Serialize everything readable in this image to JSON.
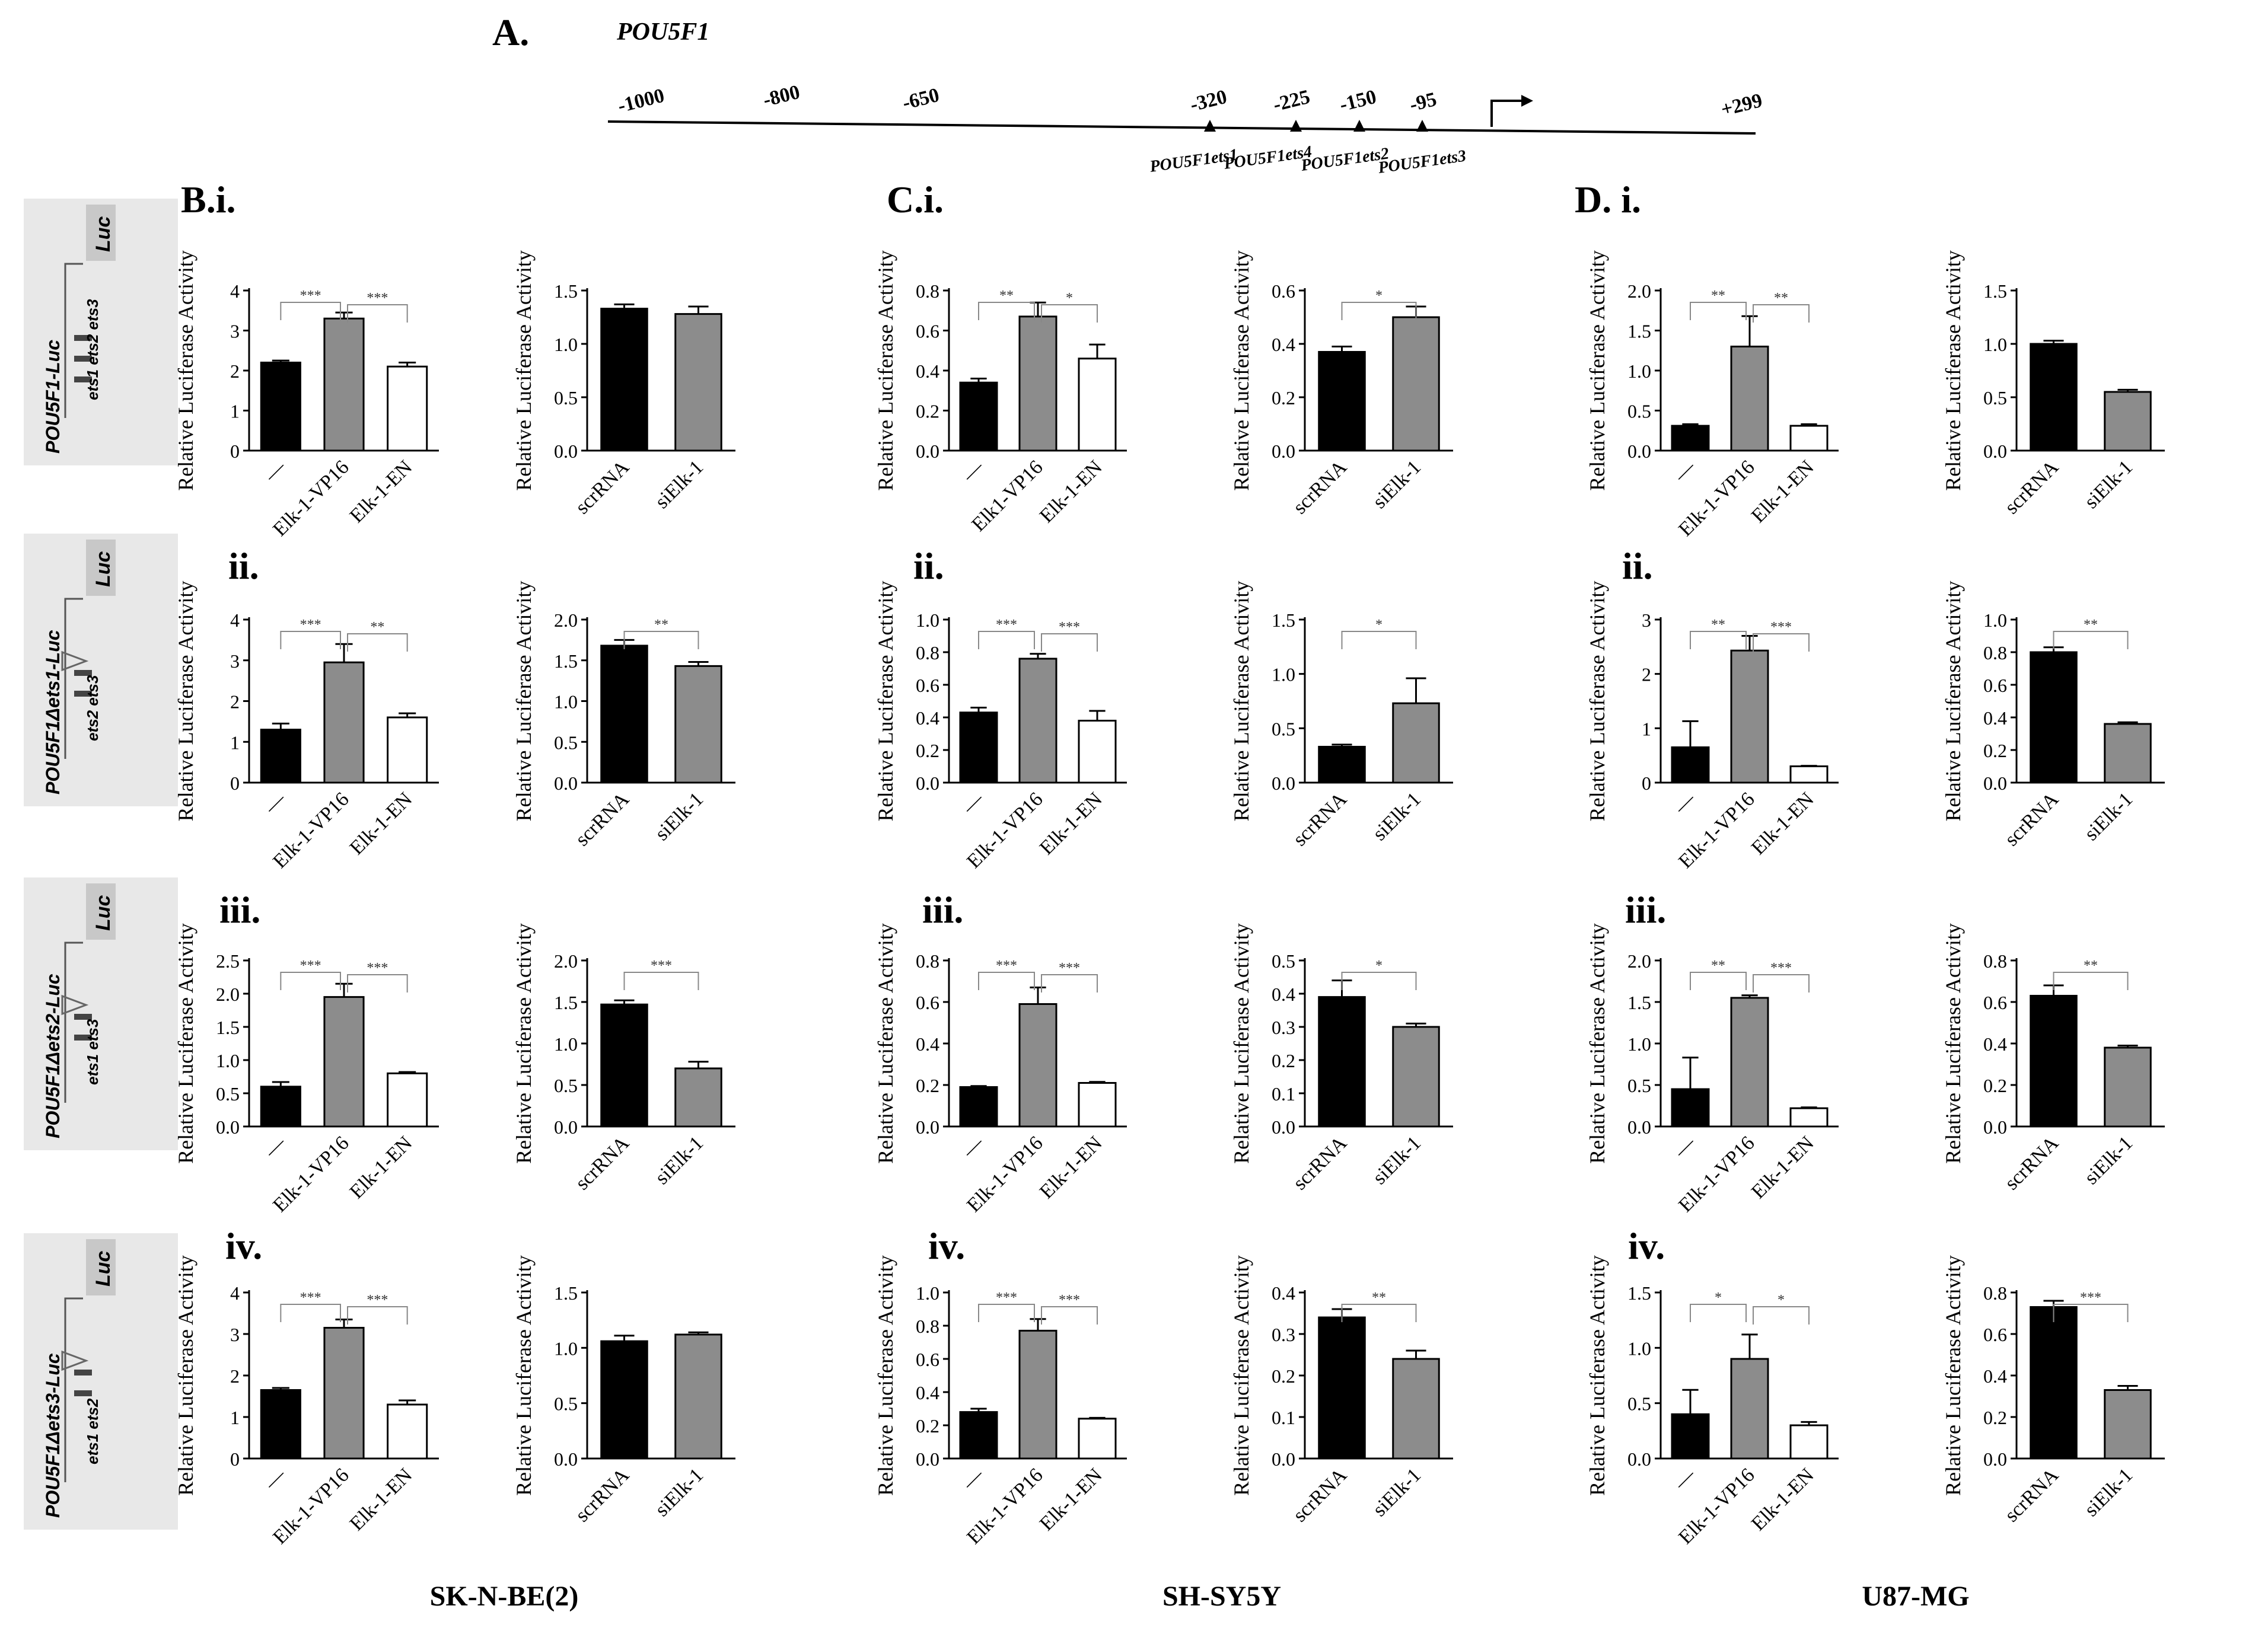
{
  "figure": {
    "panel_label_A": "A.",
    "gene_name": "POU5F1",
    "promoter_positions": [
      "-1000",
      "-800",
      "-650",
      "-320",
      "-225",
      "-150",
      "-95",
      "+299"
    ],
    "ets_sites": [
      "POU5F1ets1",
      "POU5F1ets4",
      "POU5F1ets2",
      "POU5F1ets3"
    ],
    "column_labels": [
      "B.i.",
      "C.i.",
      "D. i."
    ],
    "row_labels": [
      "ii.",
      "iii.",
      "iv."
    ],
    "cell_lines": [
      "SK-N-BE(2)",
      "SH-SY5Y",
      "U87-MG"
    ],
    "constructs": [
      {
        "name": "POU5F1-Luc",
        "sites": [
          "ets1",
          "ets2",
          "ets3"
        ]
      },
      {
        "name": "POU5F1Δets1-Luc",
        "sites": [
          "ets2",
          "ets3"
        ]
      },
      {
        "name": "POU5F1Δets2-Luc",
        "sites": [
          "ets1",
          "ets3"
        ]
      },
      {
        "name": "POU5F1Δets3-Luc",
        "sites": [
          "ets1",
          "ets2"
        ]
      }
    ],
    "luc_label": "Luc",
    "colors": {
      "black": "#000000",
      "gray": "#8c8c8c",
      "white": "#ffffff",
      "panel_bg": "#e8e8e8"
    }
  },
  "chart_data": [
    {
      "type": "bar",
      "row": "i",
      "cell_line": "SK-N-BE(2)",
      "ylabel": "Relative Luciferase Activity",
      "categories": [
        "—",
        "Elk-1-VP16",
        "Elk-1-EN"
      ],
      "values": [
        2.2,
        3.3,
        2.1
      ],
      "errors": [
        0.05,
        0.15,
        0.1
      ],
      "ylim": [
        0,
        4
      ],
      "yticks": [
        "0",
        "1",
        "2",
        "3",
        "4"
      ],
      "significance": [
        {
          "from": 0,
          "to": 1,
          "label": "***"
        },
        {
          "from": 1,
          "to": 2,
          "label": "***"
        }
      ]
    },
    {
      "type": "bar",
      "row": "i",
      "cell_line": "SK-N-BE(2)",
      "ylabel": "Relative Luciferase Activity",
      "categories": [
        "scrRNA",
        "siElk-1"
      ],
      "values": [
        1.33,
        1.28
      ],
      "errors": [
        0.04,
        0.07
      ],
      "ylim": [
        0,
        1.5
      ],
      "yticks": [
        "0.0",
        "0.5",
        "1.0",
        "1.5"
      ],
      "significance": []
    },
    {
      "type": "bar",
      "row": "i",
      "cell_line": "SH-SY5Y",
      "ylabel": "Relative Luciferase Activity",
      "categories": [
        "—",
        "Elk1-VP16",
        "Elk-1-EN"
      ],
      "values": [
        0.34,
        0.67,
        0.46
      ],
      "errors": [
        0.02,
        0.07,
        0.07
      ],
      "ylim": [
        0,
        0.8
      ],
      "yticks": [
        "0.0",
        "0.2",
        "0.4",
        "0.6",
        "0.8"
      ],
      "significance": [
        {
          "from": 0,
          "to": 1,
          "label": "**"
        },
        {
          "from": 1,
          "to": 2,
          "label": "*"
        }
      ]
    },
    {
      "type": "bar",
      "row": "i",
      "cell_line": "SH-SY5Y",
      "ylabel": "Relative Luciferase Activity",
      "categories": [
        "scrRNA",
        "siElk-1"
      ],
      "values": [
        0.37,
        0.5
      ],
      "errors": [
        0.02,
        0.04
      ],
      "ylim": [
        0,
        0.6
      ],
      "yticks": [
        "0.0",
        "0.2",
        "0.4",
        "0.6"
      ],
      "significance": [
        {
          "from": 0,
          "to": 1,
          "label": "*"
        }
      ]
    },
    {
      "type": "bar",
      "row": "i",
      "cell_line": "U87-MG",
      "ylabel": "Relative Luciferase Activity",
      "categories": [
        "—",
        "Elk-1-VP16",
        "Elk-1-EN"
      ],
      "values": [
        0.31,
        1.3,
        0.31
      ],
      "errors": [
        0.02,
        0.38,
        0.02
      ],
      "ylim": [
        0,
        2
      ],
      "yticks": [
        "0.0",
        "0.5",
        "1.0",
        "1.5",
        "2.0"
      ],
      "significance": [
        {
          "from": 0,
          "to": 1,
          "label": "**"
        },
        {
          "from": 1,
          "to": 2,
          "label": "**"
        }
      ]
    },
    {
      "type": "bar",
      "row": "i",
      "cell_line": "U87-MG",
      "ylabel": "Relative Luciferase Activity",
      "categories": [
        "scrRNA",
        "siElk-1"
      ],
      "values": [
        1.0,
        0.55
      ],
      "errors": [
        0.03,
        0.02
      ],
      "ylim": [
        0,
        1.5
      ],
      "yticks": [
        "0.0",
        "0.5",
        "1.0",
        "1.5"
      ],
      "significance": []
    },
    {
      "type": "bar",
      "row": "ii",
      "cell_line": "SK-N-BE(2)",
      "ylabel": "Relative Luciferase Activity",
      "categories": [
        "—",
        "Elk-1-VP16",
        "Elk-1-EN"
      ],
      "values": [
        1.3,
        2.95,
        1.6
      ],
      "errors": [
        0.15,
        0.45,
        0.1
      ],
      "ylim": [
        0,
        4
      ],
      "yticks": [
        "0",
        "1",
        "2",
        "3",
        "4"
      ],
      "significance": [
        {
          "from": 0,
          "to": 1,
          "label": "***"
        },
        {
          "from": 1,
          "to": 2,
          "label": "**"
        }
      ]
    },
    {
      "type": "bar",
      "row": "ii",
      "cell_line": "SK-N-BE(2)",
      "ylabel": "Relative Luciferase Activity",
      "categories": [
        "scrRNA",
        "siElk-1"
      ],
      "values": [
        1.68,
        1.43
      ],
      "errors": [
        0.07,
        0.05
      ],
      "ylim": [
        0,
        2
      ],
      "yticks": [
        "0.0",
        "0.5",
        "1.0",
        "1.5",
        "2.0"
      ],
      "significance": [
        {
          "from": 0,
          "to": 1,
          "label": "**"
        }
      ]
    },
    {
      "type": "bar",
      "row": "ii",
      "cell_line": "SH-SY5Y",
      "ylabel": "Relative Luciferase Activity",
      "categories": [
        "—",
        "Elk-1-VP16",
        "Elk-1-EN"
      ],
      "values": [
        0.43,
        0.76,
        0.38
      ],
      "errors": [
        0.03,
        0.03,
        0.06
      ],
      "ylim": [
        0,
        1
      ],
      "yticks": [
        "0.0",
        "0.2",
        "0.4",
        "0.6",
        "0.8",
        "1.0"
      ],
      "significance": [
        {
          "from": 0,
          "to": 1,
          "label": "***"
        },
        {
          "from": 1,
          "to": 2,
          "label": "***"
        }
      ]
    },
    {
      "type": "bar",
      "row": "ii",
      "cell_line": "SH-SY5Y",
      "ylabel": "Relative Luciferase Activity",
      "categories": [
        "scrRNA",
        "siElk-1"
      ],
      "values": [
        0.33,
        0.73
      ],
      "errors": [
        0.02,
        0.23
      ],
      "ylim": [
        0,
        1.5
      ],
      "yticks": [
        "0.0",
        "0.5",
        "1.0",
        "1.5"
      ],
      "significance": [
        {
          "from": 0,
          "to": 1,
          "label": "*"
        }
      ]
    },
    {
      "type": "bar",
      "row": "ii",
      "cell_line": "U87-MG",
      "ylabel": "Relative Luciferase Activity",
      "categories": [
        "—",
        "Elk-1-VP16",
        "Elk-1-EN"
      ],
      "values": [
        0.65,
        2.43,
        0.3
      ],
      "errors": [
        0.48,
        0.27,
        0.01
      ],
      "ylim": [
        0,
        3
      ],
      "yticks": [
        "0",
        "1",
        "2",
        "3"
      ],
      "significance": [
        {
          "from": 0,
          "to": 1,
          "label": "**"
        },
        {
          "from": 1,
          "to": 2,
          "label": "***"
        }
      ]
    },
    {
      "type": "bar",
      "row": "ii",
      "cell_line": "U87-MG",
      "ylabel": "Relative Luciferase Activity",
      "categories": [
        "scrRNA",
        "siElk-1"
      ],
      "values": [
        0.8,
        0.36
      ],
      "errors": [
        0.03,
        0.01
      ],
      "ylim": [
        0,
        1
      ],
      "yticks": [
        "0.0",
        "0.2",
        "0.4",
        "0.6",
        "0.8",
        "1.0"
      ],
      "significance": [
        {
          "from": 0,
          "to": 1,
          "label": "**"
        }
      ]
    },
    {
      "type": "bar",
      "row": "iii",
      "cell_line": "SK-N-BE(2)",
      "ylabel": "Relative Luciferase Activity",
      "categories": [
        "—",
        "Elk-1-VP16",
        "Elk-1-EN"
      ],
      "values": [
        0.6,
        1.95,
        0.8
      ],
      "errors": [
        0.07,
        0.2,
        0.02
      ],
      "ylim": [
        0,
        2.5
      ],
      "yticks": [
        "0.0",
        "0.5",
        "1.0",
        "1.5",
        "2.0",
        "2.5"
      ],
      "significance": [
        {
          "from": 0,
          "to": 1,
          "label": "***"
        },
        {
          "from": 1,
          "to": 2,
          "label": "***"
        }
      ]
    },
    {
      "type": "bar",
      "row": "iii",
      "cell_line": "SK-N-BE(2)",
      "ylabel": "Relative Luciferase Activity",
      "categories": [
        "scrRNA",
        "siElk-1"
      ],
      "values": [
        1.47,
        0.7
      ],
      "errors": [
        0.05,
        0.08
      ],
      "ylim": [
        0,
        2
      ],
      "yticks": [
        "0.0",
        "0.5",
        "1.0",
        "1.5",
        "2.0"
      ],
      "significance": [
        {
          "from": 0,
          "to": 1,
          "label": "***"
        }
      ]
    },
    {
      "type": "bar",
      "row": "iii",
      "cell_line": "SH-SY5Y",
      "ylabel": "Relative Luciferase Activity",
      "categories": [
        "—",
        "Elk-1-VP16",
        "Elk-1-EN"
      ],
      "values": [
        0.19,
        0.59,
        0.21
      ],
      "errors": [
        0.005,
        0.08,
        0.005
      ],
      "ylim": [
        0,
        0.8
      ],
      "yticks": [
        "0.0",
        "0.2",
        "0.4",
        "0.6",
        "0.8"
      ],
      "significance": [
        {
          "from": 0,
          "to": 1,
          "label": "***"
        },
        {
          "from": 1,
          "to": 2,
          "label": "***"
        }
      ]
    },
    {
      "type": "bar",
      "row": "iii",
      "cell_line": "SH-SY5Y",
      "ylabel": "Relative Luciferase Activity",
      "categories": [
        "scrRNA",
        "siElk-1"
      ],
      "values": [
        0.39,
        0.3
      ],
      "errors": [
        0.05,
        0.01
      ],
      "ylim": [
        0,
        0.5
      ],
      "yticks": [
        "0.0",
        "0.1",
        "0.2",
        "0.3",
        "0.4",
        "0.5"
      ],
      "significance": [
        {
          "from": 0,
          "to": 1,
          "label": "*"
        }
      ]
    },
    {
      "type": "bar",
      "row": "iii",
      "cell_line": "U87-MG",
      "ylabel": "Relative Luciferase Activity",
      "categories": [
        "—",
        "Elk-1-VP16",
        "Elk-1-EN"
      ],
      "values": [
        0.45,
        1.55,
        0.22
      ],
      "errors": [
        0.38,
        0.03,
        0.01
      ],
      "ylim": [
        0,
        2
      ],
      "yticks": [
        "0.0",
        "0.5",
        "1.0",
        "1.5",
        "2.0"
      ],
      "significance": [
        {
          "from": 0,
          "to": 1,
          "label": "**"
        },
        {
          "from": 1,
          "to": 2,
          "label": "***"
        }
      ]
    },
    {
      "type": "bar",
      "row": "iii",
      "cell_line": "U87-MG",
      "ylabel": "Relative Luciferase Activity",
      "categories": [
        "scrRNA",
        "siElk-1"
      ],
      "values": [
        0.63,
        0.38
      ],
      "errors": [
        0.05,
        0.01
      ],
      "ylim": [
        0,
        0.8
      ],
      "yticks": [
        "0.0",
        "0.2",
        "0.4",
        "0.6",
        "0.8"
      ],
      "significance": [
        {
          "from": 0,
          "to": 1,
          "label": "**"
        }
      ]
    },
    {
      "type": "bar",
      "row": "iv",
      "cell_line": "SK-N-BE(2)",
      "ylabel": "Relative Luciferase Activity",
      "categories": [
        "—",
        "Elk-1-VP16",
        "Elk-1-EN"
      ],
      "values": [
        1.65,
        3.15,
        1.3
      ],
      "errors": [
        0.05,
        0.2,
        0.1
      ],
      "ylim": [
        0,
        4
      ],
      "yticks": [
        "0",
        "1",
        "2",
        "3",
        "4"
      ],
      "significance": [
        {
          "from": 0,
          "to": 1,
          "label": "***"
        },
        {
          "from": 1,
          "to": 2,
          "label": "***"
        }
      ]
    },
    {
      "type": "bar",
      "row": "iv",
      "cell_line": "SK-N-BE(2)",
      "ylabel": "Relative Luciferase Activity",
      "categories": [
        "scrRNA",
        "siElk-1"
      ],
      "values": [
        1.06,
        1.12
      ],
      "errors": [
        0.05,
        0.02
      ],
      "ylim": [
        0,
        1.5
      ],
      "yticks": [
        "0.0",
        "0.5",
        "1.0",
        "1.5"
      ],
      "significance": []
    },
    {
      "type": "bar",
      "row": "iv",
      "cell_line": "SH-SY5Y",
      "ylabel": "Relative Luciferase Activity",
      "categories": [
        "—",
        "Elk-1-VP16",
        "Elk-1-EN"
      ],
      "values": [
        0.28,
        0.77,
        0.24
      ],
      "errors": [
        0.02,
        0.07,
        0.005
      ],
      "ylim": [
        0,
        1
      ],
      "yticks": [
        "0.0",
        "0.2",
        "0.4",
        "0.6",
        "0.8",
        "1.0"
      ],
      "significance": [
        {
          "from": 0,
          "to": 1,
          "label": "***"
        },
        {
          "from": 1,
          "to": 2,
          "label": "***"
        }
      ]
    },
    {
      "type": "bar",
      "row": "iv",
      "cell_line": "SH-SY5Y",
      "ylabel": "Relative Luciferase Activity",
      "categories": [
        "scrRNA",
        "siElk-1"
      ],
      "values": [
        0.34,
        0.24
      ],
      "errors": [
        0.02,
        0.02
      ],
      "ylim": [
        0,
        0.4
      ],
      "yticks": [
        "0.0",
        "0.1",
        "0.2",
        "0.3",
        "0.4"
      ],
      "significance": [
        {
          "from": 0,
          "to": 1,
          "label": "**"
        }
      ]
    },
    {
      "type": "bar",
      "row": "iv",
      "cell_line": "U87-MG",
      "ylabel": "Relative Luciferase Activity",
      "categories": [
        "—",
        "Elk-1-VP16",
        "Elk-1-EN"
      ],
      "values": [
        0.4,
        0.9,
        0.3
      ],
      "errors": [
        0.22,
        0.22,
        0.03
      ],
      "ylim": [
        0,
        1.5
      ],
      "yticks": [
        "0.0",
        "0.5",
        "1.0",
        "1.5"
      ],
      "significance": [
        {
          "from": 0,
          "to": 1,
          "label": "*"
        },
        {
          "from": 1,
          "to": 2,
          "label": "*"
        }
      ]
    },
    {
      "type": "bar",
      "row": "iv",
      "cell_line": "U87-MG",
      "ylabel": "Relative Luciferase Activity",
      "categories": [
        "scrRNA",
        "siElk-1"
      ],
      "values": [
        0.73,
        0.33
      ],
      "errors": [
        0.03,
        0.02
      ],
      "ylim": [
        0,
        0.8
      ],
      "yticks": [
        "0.0",
        "0.2",
        "0.4",
        "0.6",
        "0.8"
      ],
      "significance": [
        {
          "from": 0,
          "to": 1,
          "label": "***"
        }
      ]
    }
  ]
}
